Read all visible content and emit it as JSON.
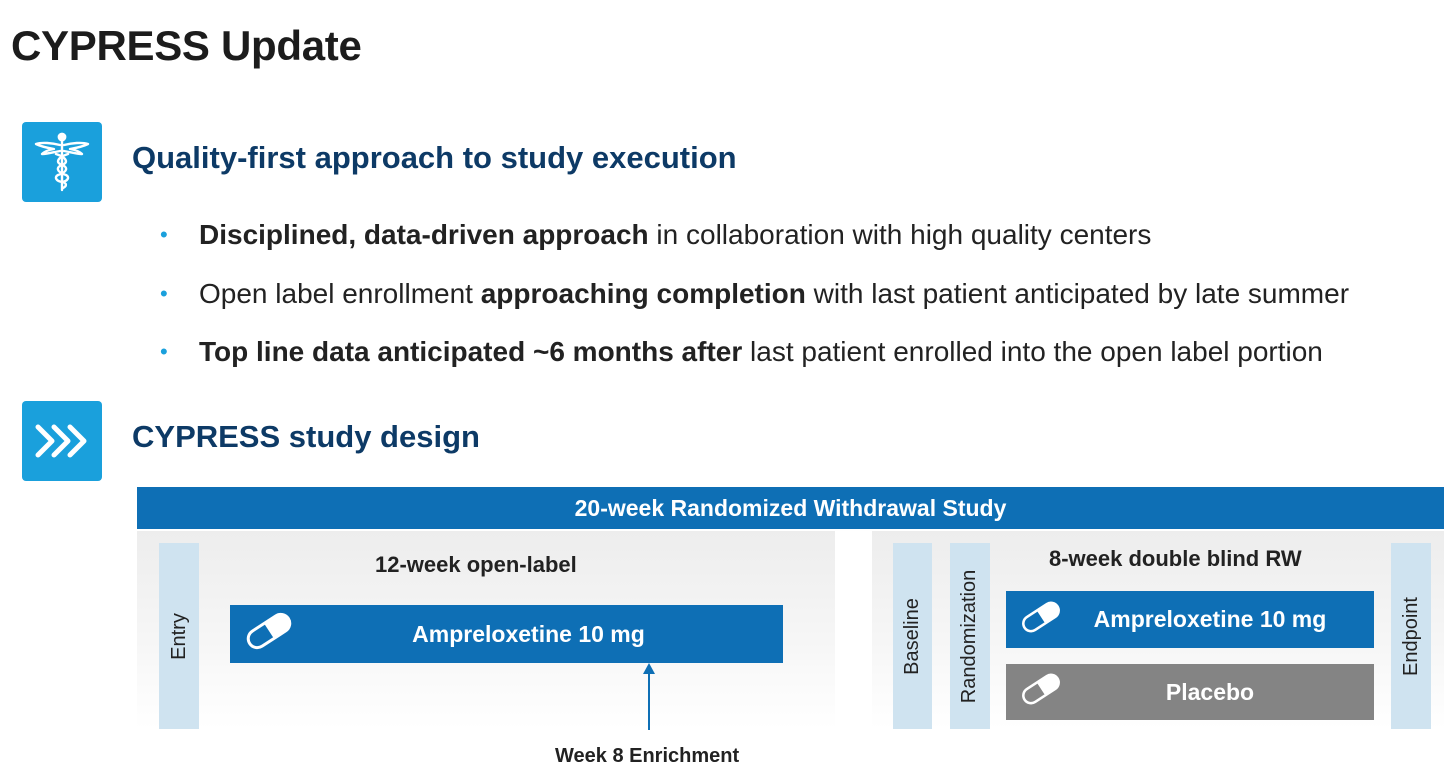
{
  "title": "CYPRESS Update",
  "colors": {
    "accent": "#1aa0dc",
    "heading": "#0d3a66",
    "bar_blue": "#0e6fb5",
    "placebo_gray": "#848484",
    "marker_bar": "#cfe3f0"
  },
  "section1": {
    "icon": "caduceus-icon",
    "heading": "Quality-first approach to study execution",
    "bullets": [
      {
        "bold": "Disciplined, data-driven approach",
        "rest": " in collaboration with high quality centers"
      },
      {
        "lead": "Open label enrollment ",
        "bold": "approaching completion",
        "rest": " with last patient anticipated by late summer"
      },
      {
        "bold": "Top line data anticipated ~6 months after",
        "rest": " last patient enrolled into the open label portion"
      }
    ]
  },
  "section2": {
    "icon": "triple-chevron-right-icon",
    "heading": "CYPRESS study design"
  },
  "design": {
    "banner": "20-week Randomized Withdrawal Study",
    "open_label": "12-week open-label",
    "double_blind": "8-week double blind RW",
    "entry": "Entry",
    "baseline": "Baseline",
    "randomization": "Randomization",
    "endpoint": "Endpoint",
    "drug_open": "Ampreloxetine 10 mg",
    "drug_blind": "Ampreloxetine 10 mg",
    "placebo": "Placebo",
    "enrichment": "Week 8 Enrichment"
  }
}
